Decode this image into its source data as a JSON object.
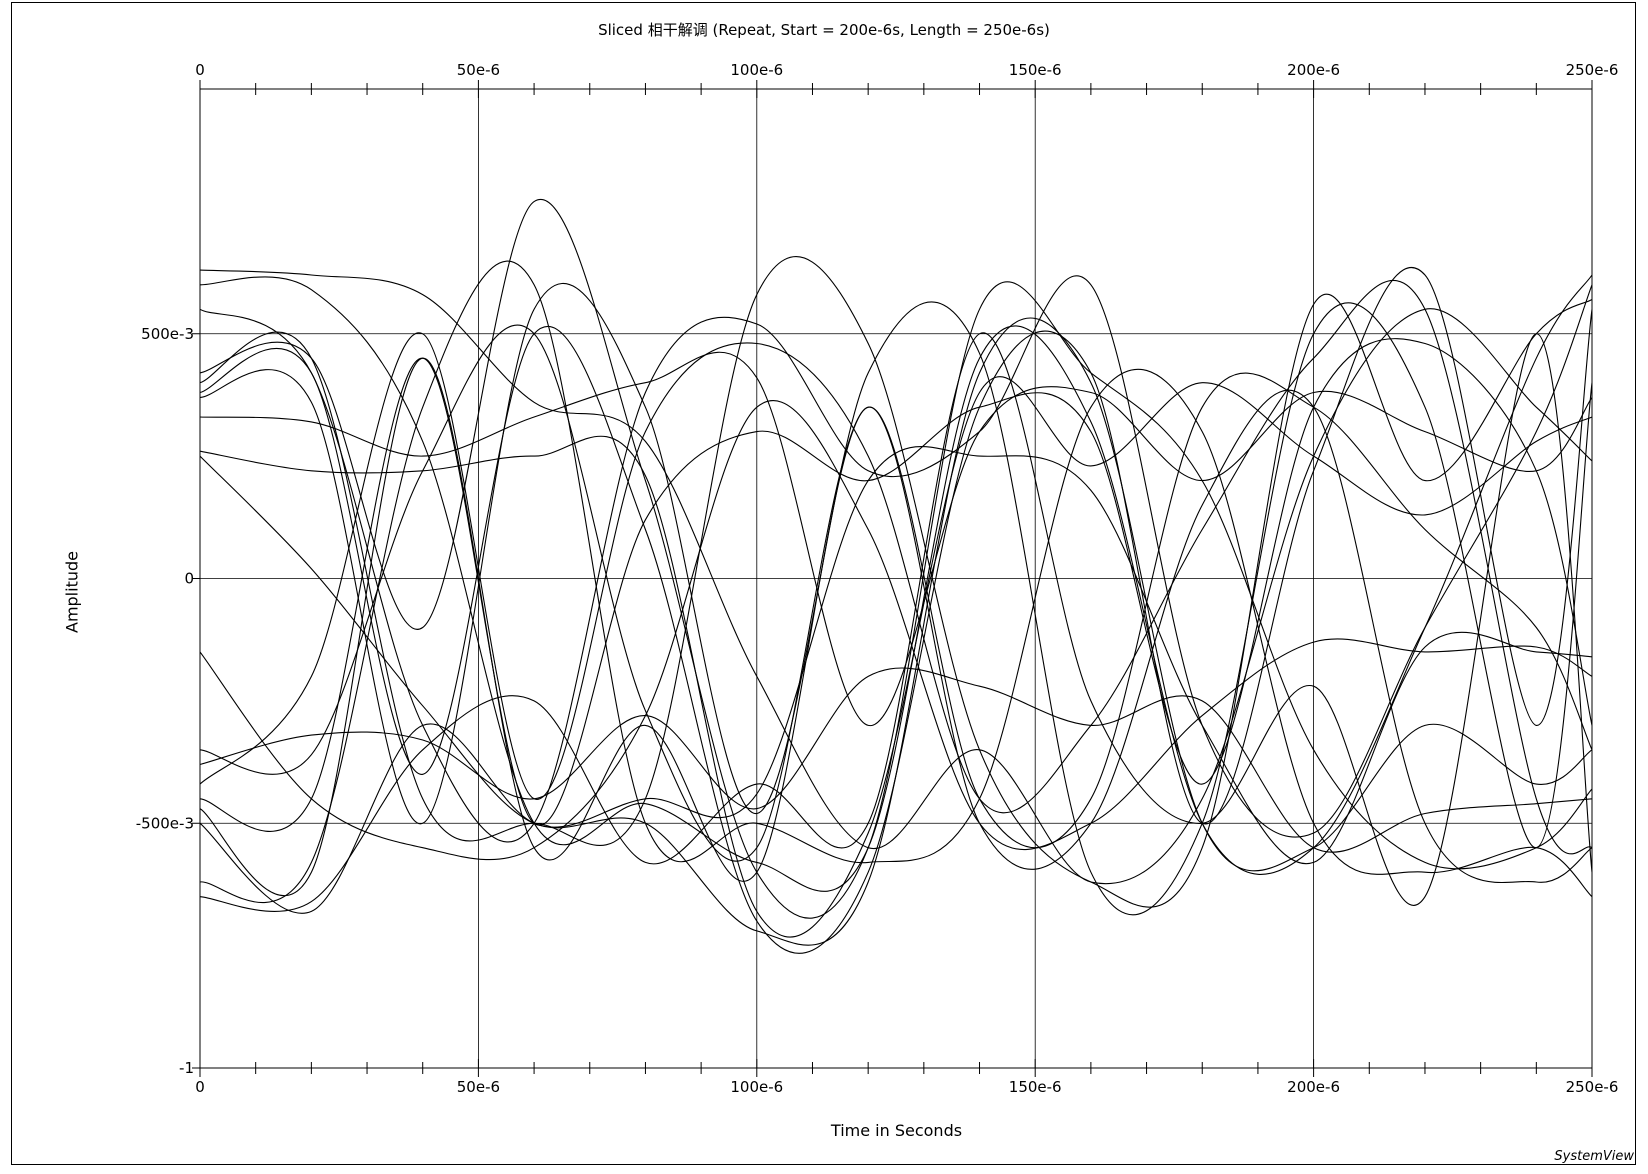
{
  "chart_data": {
    "type": "line",
    "title": "Sliced 相干解调 (Repeat, Start = 200e-6s, Length = 250e-6s)",
    "xlabel": "Time in Seconds",
    "ylabel": "Amplitude",
    "xlim": [
      0,
      0.00025
    ],
    "ylim": [
      -1,
      1
    ],
    "x_ticks": [
      {
        "value": 0,
        "label": "0"
      },
      {
        "value": 5e-05,
        "label": "50e-6"
      },
      {
        "value": 0.0001,
        "label": "100e-6"
      },
      {
        "value": 0.00015,
        "label": "150e-6"
      },
      {
        "value": 0.0002,
        "label": "200e-6"
      },
      {
        "value": 0.00025,
        "label": "250e-6"
      }
    ],
    "y_ticks": [
      {
        "value": -1,
        "label": "-1"
      },
      {
        "value": -0.5,
        "label": "-500e-3"
      },
      {
        "value": 0,
        "label": "0"
      },
      {
        "value": 0.5,
        "label": "500e-3"
      }
    ],
    "grid": true,
    "line_color": "#000000",
    "x": [
      0,
      2e-05,
      4e-05,
      6e-05,
      8e-05,
      0.0001,
      0.00012,
      0.00014,
      0.00016,
      0.00018,
      0.0002,
      0.00022,
      0.00024,
      0.00025
    ],
    "series": [
      {
        "values": [
          0.63,
          0.62,
          0.58,
          0.36,
          0.28,
          -0.2,
          -0.55,
          -0.35,
          -0.62,
          -0.45,
          0.25,
          0.55,
          0.35,
          0.24
        ]
      },
      {
        "values": [
          0.6,
          0.59,
          0.28,
          -0.5,
          -0.46,
          -0.58,
          -0.55,
          0.45,
          0.32,
          -0.5,
          -0.55,
          -0.1,
          0.45,
          0.62
        ]
      },
      {
        "values": [
          0.55,
          0.42,
          -0.3,
          -0.5,
          0.38,
          0.52,
          0.22,
          0.3,
          0.6,
          -0.3,
          -0.52,
          -0.1,
          0.3,
          0.6
        ]
      },
      {
        "values": [
          0.42,
          0.45,
          -0.1,
          0.77,
          0.2,
          -0.6,
          -0.55,
          0.55,
          0.42,
          0.2,
          -0.35,
          -0.58,
          -0.55,
          -0.43
        ]
      },
      {
        "values": [
          0.4,
          0.45,
          -0.45,
          -0.5,
          -0.45,
          0.58,
          0.48,
          -0.35,
          -0.62,
          -0.55,
          0.56,
          0.2,
          0.5,
          0.57
        ]
      },
      {
        "values": [
          0.38,
          0.42,
          -0.4,
          0.5,
          0.1,
          -0.7,
          -0.6,
          0.35,
          0.42,
          -0.5,
          0.22,
          0.62,
          -0.3,
          0.55
        ]
      },
      {
        "values": [
          0.37,
          0.36,
          -0.5,
          0.55,
          0.35,
          -0.48,
          0.42,
          0.46,
          -0.6,
          -0.5,
          0.5,
          0.35,
          -0.55,
          0.4
        ]
      },
      {
        "values": [
          0.33,
          0.32,
          0.25,
          0.33,
          0.4,
          0.41,
          -0.3,
          0.3,
          0.38,
          0.2,
          0.38,
          0.3,
          0.22,
          0.37
        ]
      },
      {
        "values": [
          0.26,
          0.22,
          0.22,
          0.25,
          0.21,
          -0.68,
          -0.52,
          0.38,
          0.23,
          0.4,
          0.25,
          0.13,
          0.28,
          0.33
        ]
      },
      {
        "values": [
          0.25,
          0.02,
          -0.26,
          -0.5,
          -0.45,
          -0.44,
          0.2,
          0.25,
          0.18,
          -0.3,
          -0.58,
          -0.14,
          -0.15,
          -0.16
        ]
      },
      {
        "values": [
          -0.15,
          -0.45,
          -0.55,
          -0.55,
          -0.28,
          0.35,
          0.1,
          -0.5,
          -0.5,
          -0.28,
          -0.13,
          -0.15,
          -0.14,
          -0.2
        ]
      },
      {
        "values": [
          -0.35,
          -0.36,
          0.22,
          0.5,
          -0.27,
          -0.55,
          0.35,
          -0.45,
          -0.45,
          0.35,
          0.35,
          0.1,
          -0.1,
          -0.35
        ]
      },
      {
        "values": [
          -0.38,
          -0.32,
          -0.33,
          -0.45,
          -0.28,
          -0.47,
          -0.2,
          -0.22,
          -0.3,
          -0.25,
          -0.55,
          -0.48,
          -0.46,
          -0.45
        ]
      },
      {
        "values": [
          -0.42,
          -0.2,
          0.5,
          -0.45,
          0.3,
          0.48,
          0.25,
          -0.45,
          -0.3,
          0.1,
          0.45,
          0.55,
          -0.45,
          -0.55
        ]
      },
      {
        "values": [
          -0.45,
          -0.45,
          0.45,
          -0.5,
          0.12,
          0.3,
          0.2,
          0.35,
          0.3,
          -0.42,
          0.35,
          0.48,
          0.22,
          -0.3
        ]
      },
      {
        "values": [
          -0.47,
          -0.6,
          0.45,
          -0.55,
          -0.3,
          -0.6,
          0.35,
          -0.5,
          -0.5,
          0.15,
          0.35,
          -0.5,
          -0.62,
          -0.55
        ]
      },
      {
        "values": [
          -0.5,
          -0.68,
          -0.3,
          -0.5,
          -0.5,
          -0.72,
          -0.62,
          0.42,
          0.4,
          -0.5,
          -0.55,
          -0.3,
          -0.42,
          -0.35
        ]
      },
      {
        "values": [
          -0.62,
          -0.58,
          0.35,
          0.6,
          -0.5,
          -0.5,
          -0.58,
          -0.45,
          0.35,
          0.3,
          -0.5,
          -0.6,
          -0.55,
          -0.65
        ]
      },
      {
        "values": [
          -0.65,
          -0.66,
          -0.35,
          -0.25,
          -0.58,
          -0.42,
          -0.5,
          0.5,
          -0.25,
          -0.5,
          -0.22,
          -0.65,
          0.5,
          -0.6
        ]
      }
    ]
  },
  "brand": "SystemView"
}
